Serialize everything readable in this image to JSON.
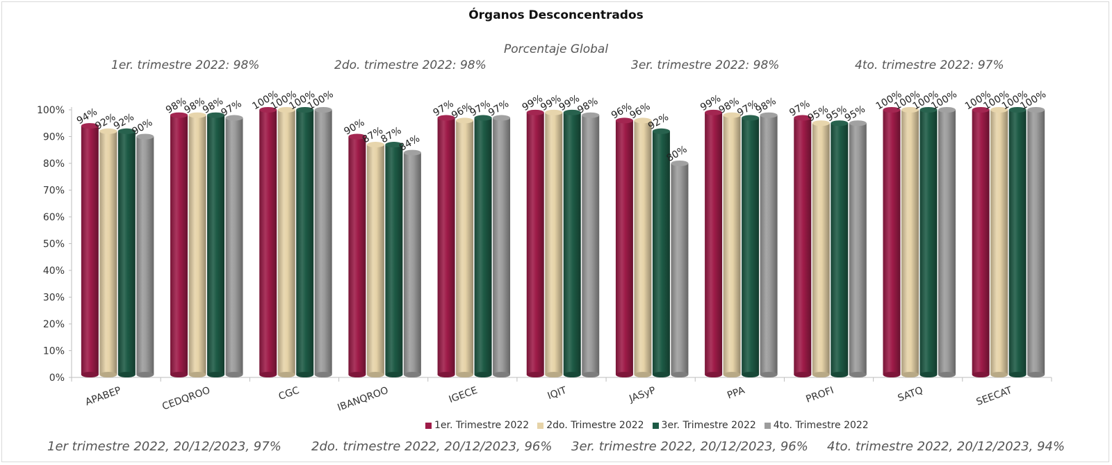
{
  "header": {
    "title": "Órganos Desconcentrados",
    "subtitle": "Porcentaje Global"
  },
  "quarter_summaries": [
    "1er. trimestre 2022: 98%",
    "2do. trimestre 2022: 98%",
    "3er. trimestre 2022: 98%",
    "4to. trimestre 2022: 97%"
  ],
  "footer_notes": [
    "1er trimestre  2022,  20/12/2023, 97%",
    "2do. trimestre 2022, 20/12/2023, 96%",
    "3er. trimestre 2022, 20/12/2023, 96%",
    "4to. trimestre 2022, 20/12/2023, 94%"
  ],
  "chart_data": {
    "type": "bar",
    "title": "Órganos Desconcentrados",
    "subtitle": "Porcentaje Global",
    "categories": [
      "APABEP",
      "CEDQROO",
      "CGC",
      "IBANQROO",
      "IGECE",
      "IQIT",
      "JASyP",
      "PPA",
      "PROFI",
      "SATQ",
      "SEECAT"
    ],
    "series": [
      {
        "name": "1er. Trimestre 2022",
        "color": "#9e1b48",
        "values": [
          94,
          98,
          100,
          90,
          97,
          99,
          96,
          99,
          97,
          100,
          100
        ]
      },
      {
        "name": "2do. Trimestre 2022",
        "color": "#e6d3a8",
        "values": [
          92,
          98,
          100,
          87,
          96,
          99,
          96,
          98,
          95,
          100,
          100
        ]
      },
      {
        "name": "3er. Trimestre 2022",
        "color": "#1d5a45",
        "values": [
          92,
          98,
          100,
          87,
          97,
          99,
          92,
          97,
          95,
          100,
          100
        ]
      },
      {
        "name": "4to. Trimestre 2022",
        "color": "#9c9c9c",
        "values": [
          90,
          97,
          100,
          84,
          97,
          98,
          80,
          98,
          95,
          100,
          100
        ]
      }
    ],
    "ylim": [
      0,
      100
    ],
    "yticks": [
      "0%",
      "10%",
      "20%",
      "30%",
      "40%",
      "50%",
      "60%",
      "70%",
      "80%",
      "90%",
      "100%"
    ],
    "value_suffix": "%",
    "legend_position": "bottom",
    "grid": false
  }
}
